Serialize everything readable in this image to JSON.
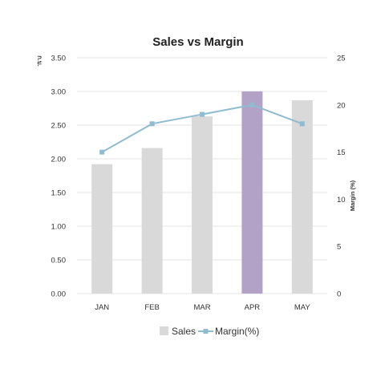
{
  "chart_data": {
    "type": "bar",
    "title": "Sales vs Margin",
    "categories": [
      "JAN",
      "FEB",
      "MAR",
      "APR",
      "MAY"
    ],
    "ylabel": "ก.บ.",
    "y2label": "Margin (%)",
    "ylim": [
      0,
      3.5
    ],
    "y2lim": [
      0,
      25
    ],
    "yticks": [
      "0.00",
      "0.50",
      "1.00",
      "1.50",
      "2.00",
      "2.50",
      "3.00",
      "3.50"
    ],
    "y2ticks": [
      "0",
      "5",
      "10",
      "15",
      "20",
      "25"
    ],
    "grid": true,
    "legend": "bottom",
    "series": [
      {
        "name": "Sales",
        "type": "bar",
        "axis": "left",
        "values": [
          1.92,
          2.16,
          2.63,
          3.0,
          2.87
        ],
        "color": "#d9d9d9",
        "highlight_index": 3,
        "highlight_color": "#b3a2c7"
      },
      {
        "name": "Margin(%)",
        "type": "line",
        "axis": "right",
        "values": [
          15,
          18,
          19,
          20,
          18
        ],
        "color": "#8fbcd0"
      }
    ]
  }
}
